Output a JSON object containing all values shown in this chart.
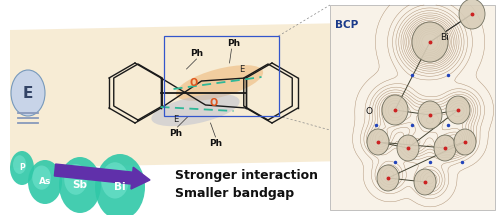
{
  "bg_color": "#ffffff",
  "plane_color": "#f5e6c8",
  "mol_color": "#1a1a1a",
  "arrow_color": "#6030aa",
  "bcp_color": "#1a3a8a",
  "text_color": "#111111",
  "blob_upper_color": "#e8a050",
  "blob_lower_color": "#b0b8d0",
  "dash_color": "#30b898",
  "O_color": "#e05820",
  "E_bg_color": "#c8d4e8",
  "lines_color": "#8899bb",
  "interaction_text": "Stronger interaction\nSmaller bandgap",
  "bcp_text": "BCP",
  "bi_text": "Bi",
  "o_text": "O"
}
